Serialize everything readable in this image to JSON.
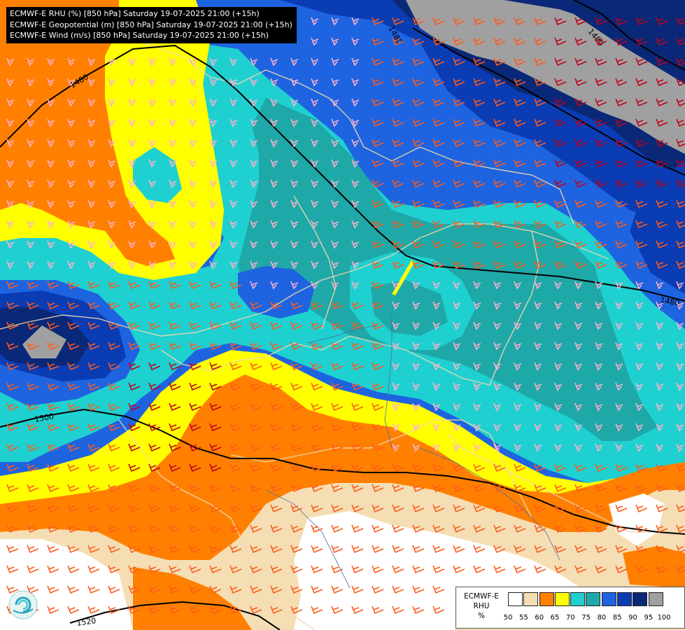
{
  "header": {
    "lines": [
      "ECMWF-E RHU (%) [850 hPa] Saturday 19-07-2025 21:00 (+15h)",
      "ECMWF-E Geopotential (m) [850 hPa] Saturday 19-07-2025 21:00 (+15h)",
      "ECMWF-E Wind (m/s) [850 hPa] Saturday 19-07-2025 21:00 (+15h)"
    ]
  },
  "legend": {
    "title_lines": [
      "ECMWF-E",
      "RHU",
      "%"
    ],
    "ticks": [
      "50",
      "55",
      "60",
      "65",
      "70",
      "75",
      "80",
      "85",
      "90",
      "95",
      "100"
    ],
    "colors": [
      "#ffffff",
      "#f5deb3",
      "#ff8000",
      "#ffff00",
      "#1fd0d0",
      "#1fa8a8",
      "#1e64e0",
      "#0a3cb4",
      "#0a2878",
      "#a0a0a0",
      "#646464"
    ]
  },
  "contours": [
    {
      "label": "1480"
    },
    {
      "label": "1480"
    },
    {
      "label": "1480"
    },
    {
      "label": "1480"
    },
    {
      "label": "1500"
    },
    {
      "label": "1520"
    }
  ],
  "logo": {
    "icon": "ecmwf-logo-icon"
  }
}
